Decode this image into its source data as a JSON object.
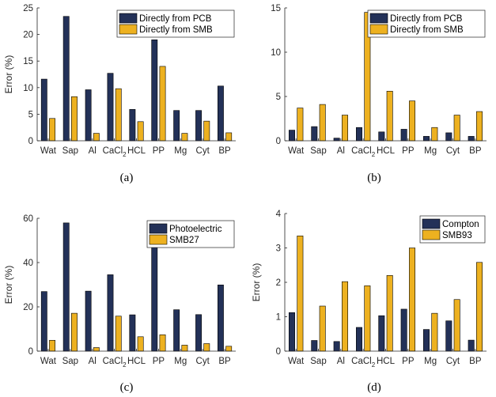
{
  "colors": {
    "series1": "#233158",
    "series2": "#EDB120",
    "axis": "#262626",
    "bar_edge": "#000000"
  },
  "chart_data": [
    {
      "id": "a",
      "type": "bar",
      "caption": "(a)",
      "ylabel": "Error (%)",
      "xlabel": "",
      "ylim": [
        0,
        25
      ],
      "yticks": [
        0,
        5,
        10,
        15,
        20,
        25
      ],
      "categories": [
        "Wat",
        "Sap",
        "Al",
        "CaCl",
        "HCL",
        "PP",
        "Mg",
        "Cyt",
        "BP"
      ],
      "category_subscripts": [
        "",
        "",
        "",
        "2",
        "",
        "",
        "",
        "",
        ""
      ],
      "legend_position": "top-right",
      "series": [
        {
          "name": "Directly from PCB",
          "values": [
            11.6,
            23.4,
            9.6,
            12.7,
            5.9,
            19.0,
            5.7,
            5.7,
            10.3
          ]
        },
        {
          "name": "Directly from SMB",
          "values": [
            4.2,
            8.3,
            1.4,
            9.8,
            3.6,
            14.0,
            1.4,
            3.7,
            1.5
          ]
        }
      ]
    },
    {
      "id": "b",
      "type": "bar",
      "caption": "(b)",
      "ylabel": "",
      "xlabel": "",
      "ylim": [
        0,
        15
      ],
      "yticks": [
        0,
        5,
        10,
        15
      ],
      "categories": [
        "Wat",
        "Sap",
        "Al",
        "CaCl",
        "HCL",
        "PP",
        "Mg",
        "Cyt",
        "BP"
      ],
      "category_subscripts": [
        "",
        "",
        "",
        "2",
        "",
        "",
        "",
        "",
        ""
      ],
      "legend_position": "top-right",
      "series": [
        {
          "name": "Directly from PCB",
          "values": [
            1.2,
            1.6,
            0.3,
            1.5,
            1.0,
            1.3,
            0.5,
            0.9,
            0.5
          ]
        },
        {
          "name": "Directly from SMB",
          "values": [
            3.7,
            4.1,
            2.9,
            14.5,
            5.6,
            4.5,
            1.5,
            2.9,
            3.3
          ]
        }
      ]
    },
    {
      "id": "c",
      "type": "bar",
      "caption": "(c)",
      "ylabel": "Error (%)",
      "xlabel": "",
      "ylim": [
        0,
        60
      ],
      "yticks": [
        0,
        20,
        40,
        60
      ],
      "categories": [
        "Wat",
        "Sap",
        "Al",
        "CaCl",
        "HCL",
        "PP",
        "Mg",
        "Cyt",
        "BP"
      ],
      "category_subscripts": [
        "",
        "",
        "",
        "2",
        "",
        "",
        "",
        "",
        ""
      ],
      "legend_position": "top-right",
      "series": [
        {
          "name": "Photoelectric",
          "values": [
            26.9,
            57.9,
            27.1,
            34.5,
            16.4,
            47.0,
            18.7,
            16.5,
            29.9
          ]
        },
        {
          "name": "SMB27",
          "values": [
            4.9,
            17.1,
            1.6,
            15.8,
            6.5,
            7.4,
            2.7,
            3.4,
            2.2
          ]
        }
      ]
    },
    {
      "id": "d",
      "type": "bar",
      "caption": "(d)",
      "ylabel": "Error (%)",
      "xlabel": "",
      "ylim": [
        0,
        4
      ],
      "yticks": [
        0,
        1,
        2,
        3,
        4
      ],
      "categories": [
        "Wat",
        "Sap",
        "Al",
        "CaCl",
        "HCL",
        "PP",
        "Mg",
        "Cyt",
        "BP"
      ],
      "category_subscripts": [
        "",
        "",
        "",
        "2",
        "",
        "",
        "",
        "",
        ""
      ],
      "legend_position": "top-right",
      "series": [
        {
          "name": "Compton",
          "values": [
            1.12,
            0.31,
            0.28,
            0.69,
            1.03,
            1.22,
            0.63,
            0.88,
            0.32
          ]
        },
        {
          "name": "SMB93",
          "values": [
            3.35,
            1.31,
            2.02,
            1.9,
            2.2,
            3.0,
            1.1,
            1.5,
            2.58
          ]
        }
      ]
    }
  ]
}
